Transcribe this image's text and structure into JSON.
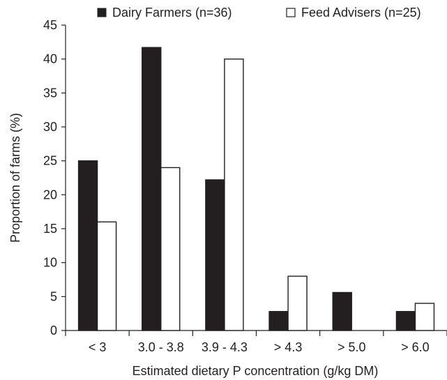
{
  "chart_data": {
    "type": "bar",
    "title": "",
    "xlabel": "Estimated dietary P concentration (g/kg DM)",
    "ylabel": "Proportion of farms (%)",
    "ylim": [
      0,
      45
    ],
    "yticks": [
      0,
      5,
      10,
      15,
      20,
      25,
      30,
      35,
      40,
      45
    ],
    "grid": false,
    "legend_position": "top",
    "categories": [
      "< 3",
      "3.0 - 3.8",
      "3.9 - 4.3",
      "> 4.3",
      "> 5.0",
      "> 6.0"
    ],
    "series": [
      {
        "name": "Dairy Farmers (n=36)",
        "values": [
          25.0,
          41.7,
          22.2,
          2.8,
          5.6,
          2.8
        ],
        "color": "#231f20"
      },
      {
        "name": "Feed Advisers (n=25)",
        "values": [
          16.0,
          24.0,
          40.0,
          8.0,
          0,
          4.0
        ],
        "color": "#ffffff"
      }
    ]
  }
}
